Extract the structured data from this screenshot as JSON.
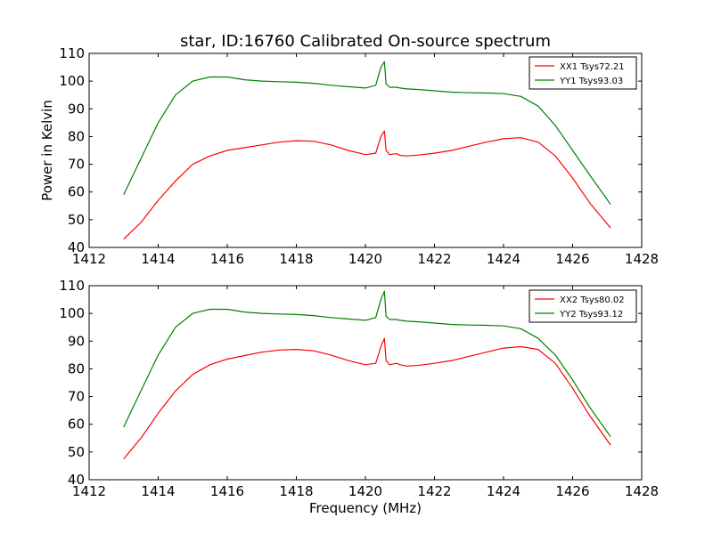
{
  "figure": {
    "title": "star, ID:16760 Calibrated On-source spectrum"
  },
  "chart_data": [
    {
      "type": "line",
      "title": "star, ID:16760 Calibrated On-source spectrum",
      "xlabel": "",
      "ylabel": "Power in Kelvin",
      "xlim": [
        1412,
        1428
      ],
      "ylim": [
        40,
        110
      ],
      "xticks": [
        1412,
        1414,
        1416,
        1418,
        1420,
        1422,
        1424,
        1426,
        1428
      ],
      "yticks": [
        40,
        50,
        60,
        70,
        80,
        90,
        100,
        110
      ],
      "legend": "top-right",
      "grid": false,
      "series": [
        {
          "name": "XX1 Tsys72.21",
          "color": "#ff0000",
          "x": [
            1413.0,
            1413.5,
            1414.0,
            1414.5,
            1415.0,
            1415.5,
            1416.0,
            1416.5,
            1417.0,
            1417.5,
            1418.0,
            1418.5,
            1419.0,
            1419.5,
            1420.0,
            1420.3,
            1420.45,
            1420.55,
            1420.6,
            1420.7,
            1420.9,
            1421.0,
            1421.2,
            1421.5,
            1422.0,
            1422.5,
            1423.0,
            1423.5,
            1424.0,
            1424.5,
            1425.0,
            1425.5,
            1426.0,
            1426.5,
            1427.1
          ],
          "y": [
            43,
            49,
            57,
            64,
            70,
            73,
            75,
            76,
            77,
            78,
            78.5,
            78.3,
            77,
            75,
            73.5,
            74,
            80,
            82,
            75,
            73.5,
            73.8,
            73.2,
            73,
            73.3,
            74,
            75,
            76.5,
            78,
            79.2,
            79.6,
            78,
            73,
            65,
            56,
            47
          ]
        },
        {
          "name": "YY1 Tsys93.03",
          "color": "#008000",
          "x": [
            1413.0,
            1413.5,
            1414.0,
            1414.5,
            1415.0,
            1415.5,
            1416.0,
            1416.5,
            1417.0,
            1417.5,
            1418.0,
            1418.5,
            1419.0,
            1419.5,
            1420.0,
            1420.3,
            1420.45,
            1420.55,
            1420.6,
            1420.7,
            1420.9,
            1421.0,
            1421.2,
            1421.5,
            1422.0,
            1422.5,
            1423.0,
            1423.5,
            1424.0,
            1424.5,
            1425.0,
            1425.5,
            1426.0,
            1426.5,
            1427.1
          ],
          "y": [
            59,
            72,
            85,
            95,
            100,
            101.5,
            101.5,
            100.5,
            100,
            99.8,
            99.6,
            99.2,
            98.5,
            98,
            97.5,
            98.5,
            105,
            107,
            99,
            97.8,
            97.8,
            97.5,
            97.2,
            97,
            96.5,
            96,
            95.8,
            95.7,
            95.5,
            94.5,
            91,
            84,
            75,
            66,
            55.5
          ]
        }
      ]
    },
    {
      "type": "line",
      "title": "",
      "xlabel": "Frequency (MHz)",
      "ylabel": "",
      "xlim": [
        1412,
        1428
      ],
      "ylim": [
        40,
        110
      ],
      "xticks": [
        1412,
        1414,
        1416,
        1418,
        1420,
        1422,
        1424,
        1426,
        1428
      ],
      "yticks": [
        40,
        50,
        60,
        70,
        80,
        90,
        100,
        110
      ],
      "legend": "top-right",
      "grid": false,
      "series": [
        {
          "name": "XX2 Tsys80.02",
          "color": "#ff0000",
          "x": [
            1413.0,
            1413.5,
            1414.0,
            1414.5,
            1415.0,
            1415.5,
            1416.0,
            1416.5,
            1417.0,
            1417.5,
            1418.0,
            1418.5,
            1419.0,
            1419.5,
            1420.0,
            1420.3,
            1420.45,
            1420.55,
            1420.6,
            1420.7,
            1420.9,
            1421.0,
            1421.2,
            1421.5,
            1422.0,
            1422.5,
            1423.0,
            1423.5,
            1424.0,
            1424.5,
            1425.0,
            1425.5,
            1426.0,
            1426.5,
            1427.1
          ],
          "y": [
            47.5,
            55,
            64,
            72,
            78,
            81.5,
            83.5,
            84.8,
            86,
            86.8,
            87,
            86.5,
            85,
            83,
            81.5,
            82,
            88,
            91,
            83,
            81.5,
            82,
            81.5,
            81,
            81.2,
            82,
            83,
            84.5,
            86,
            87.5,
            88,
            87,
            82,
            73,
            63,
            52.5
          ]
        },
        {
          "name": "YY2 Tsys93.12",
          "color": "#008000",
          "x": [
            1413.0,
            1413.5,
            1414.0,
            1414.5,
            1415.0,
            1415.5,
            1416.0,
            1416.5,
            1417.0,
            1417.5,
            1418.0,
            1418.5,
            1419.0,
            1419.5,
            1420.0,
            1420.3,
            1420.45,
            1420.55,
            1420.6,
            1420.7,
            1420.9,
            1421.0,
            1421.2,
            1421.5,
            1422.0,
            1422.5,
            1423.0,
            1423.5,
            1424.0,
            1424.5,
            1425.0,
            1425.5,
            1426.0,
            1426.5,
            1427.1
          ],
          "y": [
            59,
            72,
            85,
            95,
            100,
            101.5,
            101.5,
            100.5,
            100,
            99.8,
            99.6,
            99.2,
            98.5,
            98,
            97.5,
            98.5,
            105,
            108,
            99,
            97.8,
            97.8,
            97.5,
            97.2,
            97,
            96.5,
            96,
            95.8,
            95.7,
            95.5,
            94.5,
            91,
            85,
            76,
            66,
            55.5
          ]
        }
      ]
    }
  ]
}
